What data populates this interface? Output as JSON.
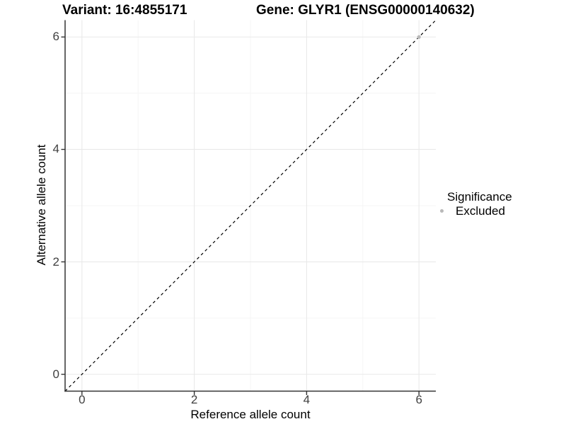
{
  "figure": {
    "title_variant": "Variant: 16:4855171",
    "title_gene": "Gene: GLYR1 (ENSG00000140632)"
  },
  "axes": {
    "x_label": "Reference allele count",
    "y_label": "Alternative allele count"
  },
  "legend": {
    "title": "Significance",
    "items": [
      {
        "label": "Excluded",
        "color": "#b9b9b9"
      }
    ]
  },
  "chart_data": {
    "type": "scatter",
    "title": "Variant: 16:4855171   Gene: GLYR1 (ENSG00000140632)",
    "xlabel": "Reference allele count",
    "ylabel": "Alternative allele count",
    "xlim": [
      -0.3,
      6.3
    ],
    "ylim": [
      -0.3,
      6.3
    ],
    "x_ticks": [
      0,
      2,
      4,
      6
    ],
    "y_ticks": [
      0,
      2,
      4,
      6
    ],
    "x_minor_ticks": [
      1,
      3,
      5
    ],
    "y_minor_ticks": [
      1,
      3,
      5
    ],
    "grid": "on",
    "legend_position": "right",
    "series": [
      {
        "name": "Excluded",
        "color": "#b9b9b9",
        "points": [
          {
            "x": 6,
            "y": 6
          }
        ]
      }
    ],
    "reference_line": {
      "type": "identity y=x",
      "style": "dashed",
      "color": "#000000",
      "from": -0.3,
      "to": 6.3
    }
  },
  "colors": {
    "background": "#ffffff",
    "grid_major": "#e9e9e9",
    "grid_minor": "#f5f5f5",
    "axis_line": "#333333",
    "tick_label": "#404040",
    "point": "#b9b9b9",
    "reference_line": "#000000"
  }
}
